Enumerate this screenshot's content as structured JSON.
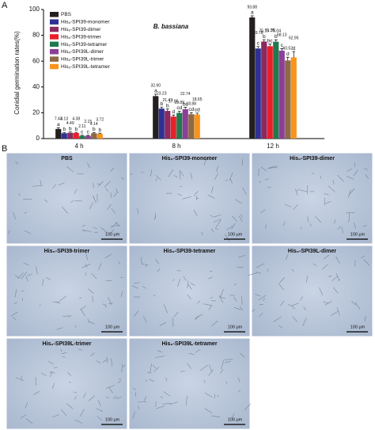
{
  "chart_data": {
    "type": "bar",
    "title": "B. bassiana",
    "y_label": "Conidial germination rates(%)",
    "categories": [
      "4 h",
      "8 h",
      "12 h"
    ],
    "series": [
      {
        "name": "PBS",
        "color": "#231f20",
        "values": [
          7.43,
          32.9,
          93.88
        ],
        "value_labels": [
          "7.43",
          "32.90",
          "93.88"
        ],
        "errors": [
          1.0,
          1.5,
          1.2
        ],
        "letters": [
          "a",
          "a",
          "a"
        ]
      },
      {
        "name": "His₆-SPI39-monomer",
        "color": "#2e3192",
        "values": [
          4.13,
          23.23,
          69.78
        ],
        "value_labels": [
          "4.13",
          "23.23",
          "69.78"
        ],
        "errors": [
          0.6,
          1.2,
          1.5
        ],
        "letters": [
          "b",
          "b",
          "c"
        ]
      },
      {
        "name": "His₆-SPI39-dimer",
        "color": "#8a2a5e",
        "values": [
          4.49,
          21.43,
          75.16
        ],
        "value_labels": [
          "4.49",
          "21.43",
          "75.16"
        ],
        "errors": [
          0.6,
          1.4,
          1.5
        ],
        "letters": [
          "b",
          "b",
          "b"
        ]
      },
      {
        "name": "His₆-SPI39-trimer",
        "color": "#e8202a",
        "values": [
          4.38,
          17.05,
          71.55
        ],
        "value_labels": [
          "4.38",
          "17.05",
          "71.55"
        ],
        "errors": [
          0.5,
          1.2,
          1.6
        ],
        "letters": [
          "b",
          "d",
          "bc"
        ]
      },
      {
        "name": "His₆-SPI39-tetramer",
        "color": "#1f7a4d",
        "values": [
          2.11,
          19.89,
          75.04
        ],
        "value_labels": [
          "2.11",
          "19.89",
          "75.04"
        ],
        "errors": [
          0.4,
          1.3,
          1.5
        ],
        "letters": [
          "c",
          "cd",
          "b"
        ]
      },
      {
        "name": "His₆-SPI39L-dimer",
        "color": "#8c3f98",
        "values": [
          2.15,
          22.74,
          68.13
        ],
        "value_labels": [
          "2.15",
          "22.74",
          "68.13"
        ],
        "errors": [
          0.4,
          1.4,
          1.6
        ],
        "letters": [
          "c",
          "bc",
          "c"
        ]
      },
      {
        "name": "His₆-SPI39L-trimer",
        "color": "#8c6a44",
        "values": [
          4.14,
          18.88,
          60.52
        ],
        "value_labels": [
          "4.14",
          "18.88",
          "60.52"
        ],
        "errors": [
          0.5,
          1.2,
          2.5
        ],
        "letters": [
          "b",
          "cd",
          "d"
        ]
      },
      {
        "name": "His₆-SPI39L-tetramer",
        "color": "#f7941d",
        "values": [
          3.72,
          18.65,
          62.95
        ],
        "value_labels": [
          "3.72",
          "18.65",
          "62.95"
        ],
        "errors": [
          0.5,
          1.1,
          4.5
        ],
        "letters": [
          "b",
          "cd",
          "d"
        ]
      }
    ],
    "ylim": [
      0,
      100
    ],
    "yticks": [
      0,
      20,
      40,
      60,
      80,
      100
    ],
    "legend": "upper left"
  },
  "figure": {
    "label_a": "A",
    "label_b": "B",
    "images": [
      {
        "title": "PBS",
        "scale": "100 μm"
      },
      {
        "title": "His₆-SPI39-monomer",
        "scale": "100 μm"
      },
      {
        "title": "His₆-SPI39-dimer",
        "scale": "100 μm"
      },
      {
        "title": "His₆-SPI39-trimer",
        "scale": "100 μm"
      },
      {
        "title": "His₆-SPI39-tetramer",
        "scale": "100 μm"
      },
      {
        "title": "His₆-SPI39L-dimer",
        "scale": "100 μm"
      },
      {
        "title": "His₆-SPI39L-trimer",
        "scale": "100 μm"
      },
      {
        "title": "His₆-SPI39L-tetramer",
        "scale": "100 μm"
      }
    ]
  }
}
